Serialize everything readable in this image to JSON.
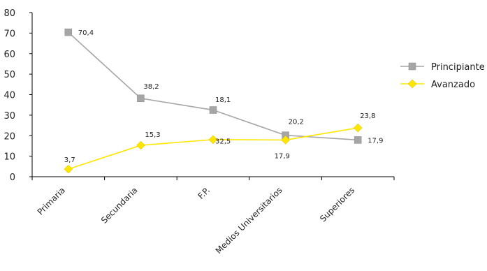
{
  "chart_data": {
    "type": "line",
    "categories": [
      "Primaria",
      "Secundaria",
      "F.P.",
      "Medios Universitarios",
      "Superiores"
    ],
    "series": [
      {
        "name": "Principiante",
        "values": [
          70.4,
          38.2,
          32.5,
          20.2,
          17.9
        ],
        "labels": [
          "70,4",
          "38,2",
          "32,5",
          "20,2",
          "17,9"
        ],
        "color": "#a6a6a6",
        "marker": "square"
      },
      {
        "name": "Avanzado",
        "values": [
          3.7,
          15.3,
          18.1,
          17.9,
          23.8
        ],
        "labels": [
          "3,7",
          "15,3",
          "18,1",
          "17,9",
          "23,8"
        ],
        "color": "#ffe600",
        "marker": "diamond"
      }
    ],
    "yticks": [
      "0",
      "10",
      "20",
      "30",
      "40",
      "50",
      "60",
      "70",
      "80"
    ],
    "ylim": [
      0,
      80
    ],
    "grid": false,
    "legend_position": "right"
  }
}
